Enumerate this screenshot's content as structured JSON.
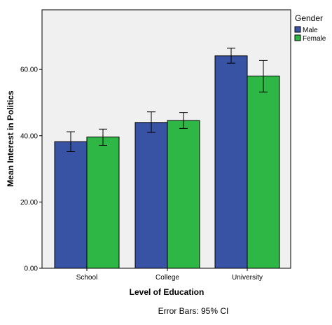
{
  "chart_data": {
    "type": "bar",
    "categories": [
      "School",
      "College",
      "University"
    ],
    "series": [
      {
        "name": "Male",
        "values": [
          38.2,
          44.0,
          64.1
        ],
        "ci_low": [
          35.2,
          41.0,
          61.9
        ],
        "ci_high": [
          41.2,
          47.2,
          66.4
        ],
        "color": "#3953a4"
      },
      {
        "name": "Female",
        "values": [
          39.6,
          44.6,
          58.0
        ],
        "ci_low": [
          37.1,
          42.2,
          53.2
        ],
        "ci_high": [
          42.0,
          47.0,
          62.7
        ],
        "color": "#2fb745"
      }
    ],
    "title": "",
    "xlabel": "Level of Education",
    "ylabel": "Mean Interest in Politics",
    "ylim": [
      0,
      78
    ],
    "yticks": [
      0,
      20,
      40,
      60
    ],
    "ytick_labels": [
      "0.00",
      "20.00",
      "40.00",
      "60.00"
    ],
    "legend_title": "Gender",
    "legend_position": "right",
    "footnote": "Error Bars: 95% CI",
    "grid": false,
    "plot_background": "#f0f0f0"
  }
}
